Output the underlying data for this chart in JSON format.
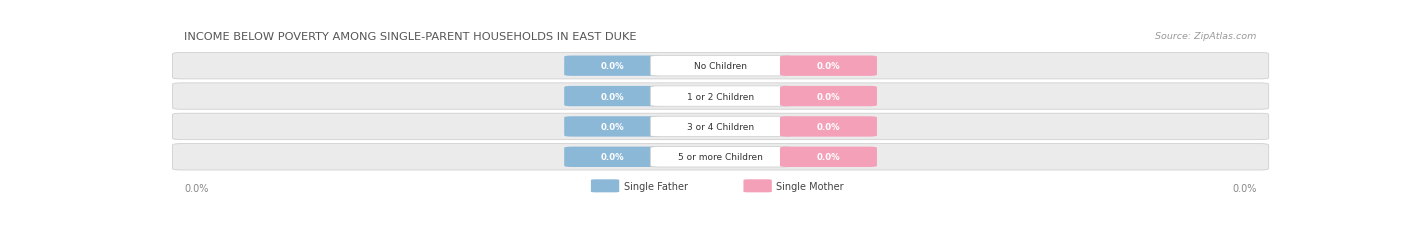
{
  "title": "INCOME BELOW POVERTY AMONG SINGLE-PARENT HOUSEHOLDS IN EAST DUKE",
  "source": "Source: ZipAtlas.com",
  "categories": [
    "No Children",
    "1 or 2 Children",
    "3 or 4 Children",
    "5 or more Children"
  ],
  "father_values": [
    "0.0%",
    "0.0%",
    "0.0%",
    "0.0%"
  ],
  "mother_values": [
    "0.0%",
    "0.0%",
    "0.0%",
    "0.0%"
  ],
  "father_color": "#8cb8d8",
  "mother_color": "#f4a0b8",
  "row_bg_color": "#ebebeb",
  "row_border_color": "#d0d0d0",
  "title_color": "#555555",
  "source_color": "#999999",
  "cat_label_color": "#333333",
  "value_text_color": "#ffffff",
  "axis_label": "0.0%",
  "legend_father": "Single Father",
  "legend_mother": "Single Mother"
}
